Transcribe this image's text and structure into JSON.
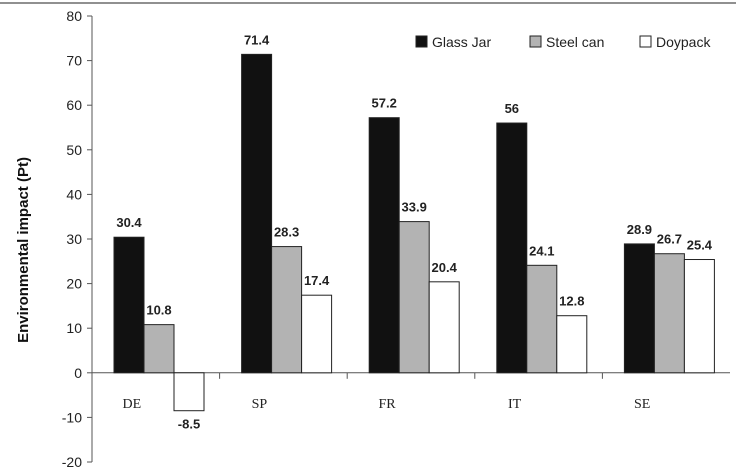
{
  "chart_data": {
    "type": "bar",
    "title": "",
    "xlabel": "",
    "ylabel": "Environmental impact (Pt)",
    "ylim": [
      -20,
      80
    ],
    "yticks": [
      -20,
      -10,
      0,
      10,
      20,
      30,
      40,
      50,
      60,
      70,
      80
    ],
    "categories": [
      "DE",
      "SP",
      "FR",
      "IT",
      "SE"
    ],
    "series": [
      {
        "name": "Glass Jar",
        "color": "#111111",
        "values": [
          30.4,
          71.4,
          57.2,
          56,
          28.9
        ]
      },
      {
        "name": "Steel can",
        "color": "#b3b3b3",
        "values": [
          10.8,
          28.3,
          33.9,
          24.1,
          26.7
        ]
      },
      {
        "name": "Doypack",
        "color": "#ffffff",
        "values": [
          -8.5,
          17.4,
          20.4,
          12.8,
          25.4
        ]
      }
    ],
    "data_labels": [
      [
        "30.4",
        "71.4",
        "57.2",
        "56",
        "28.9"
      ],
      [
        "10.8",
        "28.3",
        "33.9",
        "24.1",
        "26.7"
      ],
      [
        "-8.5",
        "17.4",
        "20.4",
        "12.8",
        "25.4"
      ]
    ],
    "legend_position": "top-right",
    "grid": false
  }
}
